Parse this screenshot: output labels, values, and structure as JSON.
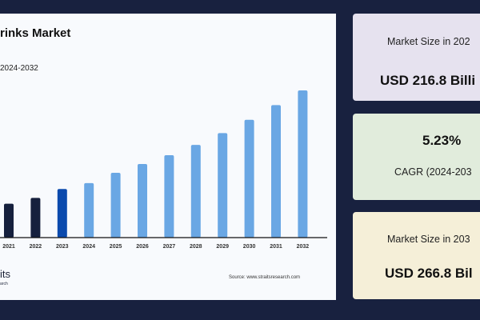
{
  "chart_data": {
    "type": "bar",
    "title": "rinks Market",
    "subtitle": "2024-2032",
    "categories": [
      "2021",
      "2022",
      "2023",
      "2024",
      "2025",
      "2026",
      "2027",
      "2028",
      "2029",
      "2030",
      "2031",
      "2032"
    ],
    "values": [
      23,
      27,
      33,
      37,
      44,
      50,
      56,
      63,
      71,
      80,
      90,
      100
    ],
    "value_note": "relative bar heights; no y-axis printed",
    "bar_colors": [
      "#16203d",
      "#16203d",
      "#0b4aad",
      "#6aa7e4",
      "#6aa7e4",
      "#6aa7e4",
      "#6aa7e4",
      "#6aa7e4",
      "#6aa7e4",
      "#6aa7e4",
      "#6aa7e4",
      "#6aa7e4"
    ],
    "grid": false,
    "legend": "none"
  },
  "logo": {
    "line1": "its",
    "line2": "arch"
  },
  "source": "Source: www.straitsresearch.com",
  "cards": [
    {
      "label": "Market Size in 202",
      "value": "USD 216.8 Billi",
      "color": "#e6e2ef"
    },
    {
      "value": "5.23%",
      "label": "CAGR (2024-203",
      "color": "#e1ecdc"
    },
    {
      "label": "Market Size in 203",
      "value": "USD 266.8 Bil",
      "color": "#f5efd8"
    }
  ]
}
